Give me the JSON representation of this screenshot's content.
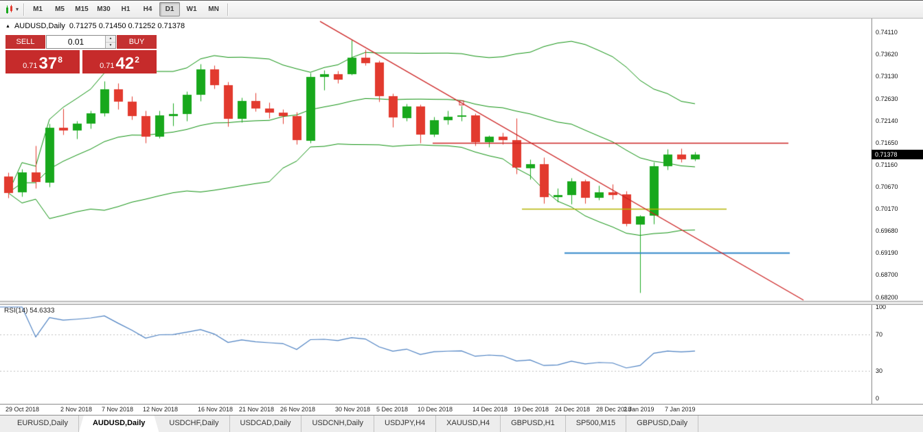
{
  "toolbar": {
    "chart_tools_caret": "▾",
    "timeframes": [
      "M1",
      "M5",
      "M15",
      "M30",
      "H1",
      "H4",
      "D1",
      "W1",
      "MN"
    ],
    "active_timeframe": "D1"
  },
  "chart": {
    "title_marker": "▲",
    "symbol_title": "AUDUSD,Daily",
    "ohlc_text": "0.71275 0.71450 0.71252 0.71378",
    "current_price": "0.71378",
    "price_axis": [
      "0.74110",
      "0.73620",
      "0.73130",
      "0.72630",
      "0.72140",
      "0.71650",
      "0.71160",
      "0.70670",
      "0.70170",
      "0.69680",
      "0.69190",
      "0.68700",
      "0.68200"
    ],
    "trade_panel": {
      "sell_label": "SELL",
      "buy_label": "BUY",
      "volume": "0.01",
      "spin_up": "▲",
      "spin_down": "▼",
      "sell_price_small": "0.71",
      "sell_price_big": "37",
      "sell_price_sup": "8",
      "buy_price_small": "0.71",
      "buy_price_big": "42",
      "buy_price_sup": "2"
    }
  },
  "rsi_panel": {
    "label": "RSI(14) 54.6333",
    "axis_labels": [
      "100",
      "70",
      "30",
      "0"
    ]
  },
  "tabs": [
    "EURUSD,Daily",
    "AUDUSD,Daily",
    "USDCHF,Daily",
    "USDCAD,Daily",
    "USDCNH,Daily",
    "USDJPY,H4",
    "XAUUSD,H4",
    "GBPUSD,H1",
    "SP500,M15",
    "GBPUSD,Daily"
  ],
  "active_tab": "AUDUSD,Daily",
  "chart_data": {
    "type": "candlestick",
    "symbol": "AUDUSD",
    "timeframe": "Daily",
    "ylim": [
      0.682,
      0.7411
    ],
    "colors": {
      "bull": "#18a81c",
      "bear": "#e23a2e",
      "bands": "#0a8f0a",
      "rsi": "#4a7fc1",
      "rsi_levels": "#bfbfbf"
    },
    "candles": [
      {
        "t": "29 Oct 2018",
        "o": 0.709,
        "h": 0.7099,
        "l": 0.7042,
        "c": 0.7053
      },
      {
        "t": "30 Oct 2018",
        "o": 0.7053,
        "h": 0.7106,
        "l": 0.7045,
        "c": 0.7098
      },
      {
        "t": "31 Oct 2018",
        "o": 0.7098,
        "h": 0.7159,
        "l": 0.7064,
        "c": 0.7076
      },
      {
        "t": "1 Nov 2018",
        "o": 0.7076,
        "h": 0.7208,
        "l": 0.7067,
        "c": 0.7198
      },
      {
        "t": "2 Nov 2018",
        "o": 0.7198,
        "h": 0.7241,
        "l": 0.7183,
        "c": 0.7192
      },
      {
        "t": "5 Nov 2018",
        "o": 0.7192,
        "h": 0.7213,
        "l": 0.7174,
        "c": 0.7207
      },
      {
        "t": "6 Nov 2018",
        "o": 0.7207,
        "h": 0.7237,
        "l": 0.7197,
        "c": 0.723
      },
      {
        "t": "7 Nov 2018",
        "o": 0.723,
        "h": 0.7303,
        "l": 0.7224,
        "c": 0.7284
      },
      {
        "t": "8 Nov 2018",
        "o": 0.7284,
        "h": 0.7297,
        "l": 0.724,
        "c": 0.7256
      },
      {
        "t": "9 Nov 2018",
        "o": 0.7256,
        "h": 0.7268,
        "l": 0.7216,
        "c": 0.7224
      },
      {
        "t": "12 Nov 2018",
        "o": 0.7224,
        "h": 0.7236,
        "l": 0.7164,
        "c": 0.7178
      },
      {
        "t": "13 Nov 2018",
        "o": 0.7178,
        "h": 0.7236,
        "l": 0.7175,
        "c": 0.7225
      },
      {
        "t": "14 Nov 2018",
        "o": 0.7225,
        "h": 0.7254,
        "l": 0.7203,
        "c": 0.7229
      },
      {
        "t": "15 Nov 2018",
        "o": 0.7229,
        "h": 0.7279,
        "l": 0.7214,
        "c": 0.7272
      },
      {
        "t": "16 Nov 2018",
        "o": 0.7272,
        "h": 0.734,
        "l": 0.7258,
        "c": 0.7328
      },
      {
        "t": "19 Nov 2018",
        "o": 0.7328,
        "h": 0.7338,
        "l": 0.7285,
        "c": 0.7293
      },
      {
        "t": "20 Nov 2018",
        "o": 0.7293,
        "h": 0.73,
        "l": 0.7202,
        "c": 0.7218
      },
      {
        "t": "21 Nov 2018",
        "o": 0.7218,
        "h": 0.7265,
        "l": 0.7211,
        "c": 0.7258
      },
      {
        "t": "22 Nov 2018",
        "o": 0.7258,
        "h": 0.7277,
        "l": 0.7235,
        "c": 0.7241
      },
      {
        "t": "23 Nov 2018",
        "o": 0.7241,
        "h": 0.7255,
        "l": 0.722,
        "c": 0.7232
      },
      {
        "t": "26 Nov 2018",
        "o": 0.7232,
        "h": 0.7239,
        "l": 0.7207,
        "c": 0.7224
      },
      {
        "t": "27 Nov 2018",
        "o": 0.7224,
        "h": 0.7234,
        "l": 0.7161,
        "c": 0.717
      },
      {
        "t": "28 Nov 2018",
        "o": 0.717,
        "h": 0.732,
        "l": 0.7165,
        "c": 0.7312
      },
      {
        "t": "29 Nov 2018",
        "o": 0.7312,
        "h": 0.7327,
        "l": 0.7283,
        "c": 0.7318
      },
      {
        "t": "30 Nov 2018",
        "o": 0.7318,
        "h": 0.7326,
        "l": 0.7297,
        "c": 0.7306
      },
      {
        "t": "3 Dec 2018",
        "o": 0.7319,
        "h": 0.7394,
        "l": 0.7316,
        "c": 0.7355
      },
      {
        "t": "4 Dec 2018",
        "o": 0.7355,
        "h": 0.7373,
        "l": 0.7337,
        "c": 0.7343
      },
      {
        "t": "5 Dec 2018",
        "o": 0.7343,
        "h": 0.7348,
        "l": 0.7257,
        "c": 0.7268
      },
      {
        "t": "6 Dec 2018",
        "o": 0.7268,
        "h": 0.7275,
        "l": 0.72,
        "c": 0.722
      },
      {
        "t": "7 Dec 2018",
        "o": 0.722,
        "h": 0.7252,
        "l": 0.7214,
        "c": 0.7246
      },
      {
        "t": "10 Dec 2018",
        "o": 0.7246,
        "h": 0.725,
        "l": 0.7165,
        "c": 0.7183
      },
      {
        "t": "11 Dec 2018",
        "o": 0.7183,
        "h": 0.7223,
        "l": 0.7178,
        "c": 0.7215
      },
      {
        "t": "12 Dec 2018",
        "o": 0.7215,
        "h": 0.7237,
        "l": 0.7206,
        "c": 0.7223
      },
      {
        "t": "13 Dec 2018",
        "o": 0.7223,
        "h": 0.7247,
        "l": 0.7213,
        "c": 0.7226
      },
      {
        "t": "14 Dec 2018",
        "o": 0.7226,
        "h": 0.723,
        "l": 0.7158,
        "c": 0.7166
      },
      {
        "t": "17 Dec 2018",
        "o": 0.7166,
        "h": 0.7181,
        "l": 0.7156,
        "c": 0.7178
      },
      {
        "t": "18 Dec 2018",
        "o": 0.7178,
        "h": 0.7188,
        "l": 0.7162,
        "c": 0.717
      },
      {
        "t": "19 Dec 2018",
        "o": 0.717,
        "h": 0.722,
        "l": 0.7096,
        "c": 0.7108
      },
      {
        "t": "20 Dec 2018",
        "o": 0.7108,
        "h": 0.7128,
        "l": 0.7084,
        "c": 0.7117
      },
      {
        "t": "21 Dec 2018",
        "o": 0.7117,
        "h": 0.7132,
        "l": 0.703,
        "c": 0.7043
      },
      {
        "t": "24 Dec 2018",
        "o": 0.7043,
        "h": 0.7064,
        "l": 0.7033,
        "c": 0.7048
      },
      {
        "t": "26 Dec 2018",
        "o": 0.7048,
        "h": 0.7086,
        "l": 0.7028,
        "c": 0.7079
      },
      {
        "t": "27 Dec 2018",
        "o": 0.7079,
        "h": 0.7083,
        "l": 0.7029,
        "c": 0.7043
      },
      {
        "t": "28 Dec 2018",
        "o": 0.7043,
        "h": 0.7069,
        "l": 0.7037,
        "c": 0.7055
      },
      {
        "t": "31 Dec 2018",
        "o": 0.7055,
        "h": 0.7072,
        "l": 0.7039,
        "c": 0.7049
      },
      {
        "t": "2 Jan 2019",
        "o": 0.7049,
        "h": 0.7057,
        "l": 0.6979,
        "c": 0.6983
      },
      {
        "t": "3 Jan 2019",
        "o": 0.6983,
        "h": 0.7004,
        "l": 0.683,
        "c": 0.7001
      },
      {
        "t": "4 Jan 2019",
        "o": 0.7001,
        "h": 0.7121,
        "l": 0.6984,
        "c": 0.7112
      },
      {
        "t": "7 Jan 2019",
        "o": 0.7112,
        "h": 0.715,
        "l": 0.7105,
        "c": 0.7138
      },
      {
        "t": "8 Jan 2019",
        "o": 0.7138,
        "h": 0.7153,
        "l": 0.7121,
        "c": 0.7128
      },
      {
        "t": "9 Jan 2019",
        "o": 0.71275,
        "h": 0.7145,
        "l": 0.71252,
        "c": 0.71378
      }
    ],
    "date_ticks": [
      {
        "bar": 0,
        "label": "29 Oct 2018"
      },
      {
        "bar": 4,
        "label": "2 Nov 2018"
      },
      {
        "bar": 7,
        "label": "7 Nov 2018"
      },
      {
        "bar": 10,
        "label": "12 Nov 2018"
      },
      {
        "bar": 14,
        "label": "16 Nov 2018"
      },
      {
        "bar": 17,
        "label": "21 Nov 2018"
      },
      {
        "bar": 20,
        "label": "26 Nov 2018"
      },
      {
        "bar": 24,
        "label": "30 Nov 2018"
      },
      {
        "bar": 27,
        "label": "5 Dec 2018"
      },
      {
        "bar": 30,
        "label": "10 Dec 2018"
      },
      {
        "bar": 34,
        "label": "14 Dec 2018"
      },
      {
        "bar": 37,
        "label": "19 Dec 2018"
      },
      {
        "bar": 40,
        "label": "24 Dec 2018"
      },
      {
        "bar": 43,
        "label": "28 Dec 2018"
      },
      {
        "bar": 45,
        "label": "2 Jan 2019"
      },
      {
        "bar": 48,
        "label": "7 Jan 2019"
      }
    ],
    "indicators": {
      "bollinger": {
        "period": 20,
        "deviation": 2
      },
      "rsi": {
        "period": 14,
        "value": 54.6333,
        "levels": [
          70,
          30
        ],
        "range": [
          0,
          100
        ]
      }
    },
    "objects": {
      "trendline": {
        "color": "#cc2222",
        "width": 1.3,
        "points": [
          {
            "bar": 22.7,
            "price": 0.74354
          },
          {
            "bar": 57.9,
            "price": 0.68139
          }
        ],
        "handle_bar": 33
      },
      "hlines": [
        {
          "price": 0.7165,
          "from_bar": 30.9,
          "to_bar": 56.8,
          "color": "#cc2222",
          "width": 1.4
        },
        {
          "price": 0.7017,
          "from_bar": 37.4,
          "to_bar": 52.3,
          "color": "#b4b400",
          "width": 1.6
        },
        {
          "price": 0.6919,
          "from_bar": 40.5,
          "to_bar": 56.9,
          "color": "#2e86c8",
          "width": 2
        }
      ]
    }
  }
}
